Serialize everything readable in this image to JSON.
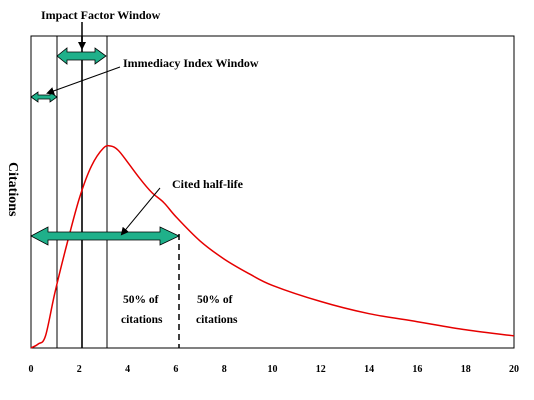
{
  "labels": {
    "impact_factor_window": "Impact Factor Window",
    "immediacy_index_window": "Immediacy Index Window",
    "cited_half_life": "Cited half-life",
    "y_axis": "Citations",
    "left_half_line1": "50% of",
    "left_half_line2": "citations",
    "right_half_line1": "50% of",
    "right_half_line2": "citations"
  },
  "chart_data": {
    "type": "line",
    "ylabel": "Citations",
    "xlim": [
      0,
      20
    ],
    "x_ticks": [
      "0",
      "2",
      "4",
      "6",
      "8",
      "10",
      "12",
      "14",
      "16",
      "18",
      "20"
    ],
    "series": [
      {
        "x": [
          0,
          0.3,
          0.6,
          1,
          1.5,
          2,
          2.5,
          3,
          3.3,
          3.6,
          4,
          4.5,
          5,
          5.5,
          6,
          7,
          8,
          9,
          10,
          12,
          14,
          16,
          18,
          20
        ],
        "y": [
          0,
          0.02,
          0.06,
          0.28,
          0.52,
          0.74,
          0.9,
          0.99,
          1.0,
          0.98,
          0.92,
          0.84,
          0.77,
          0.72,
          0.65,
          0.53,
          0.44,
          0.37,
          0.31,
          0.23,
          0.17,
          0.13,
          0.09,
          0.06
        ]
      }
    ],
    "colors": {
      "curve": "#e60000",
      "arrow": "#1fb08a"
    }
  }
}
